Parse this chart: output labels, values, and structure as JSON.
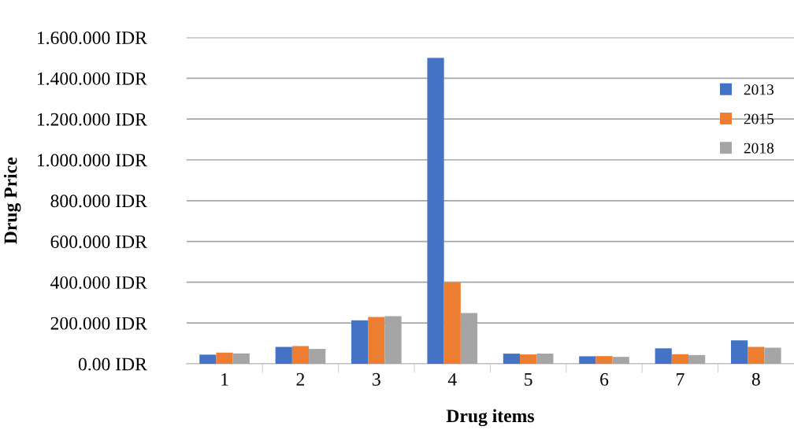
{
  "chart_data": {
    "type": "bar",
    "xlabel": "Drug items",
    "ylabel": "Drug Price",
    "categories": [
      "1",
      "2",
      "3",
      "4",
      "5",
      "6",
      "7",
      "8"
    ],
    "series": [
      {
        "name": "2013",
        "color": "#4472c4",
        "values": [
          45000,
          83000,
          213000,
          1500000,
          50000,
          37000,
          76000,
          115000
        ]
      },
      {
        "name": "2015",
        "color": "#ed7d31",
        "values": [
          55000,
          87000,
          230000,
          400000,
          46000,
          38000,
          47000,
          83000
        ]
      },
      {
        "name": "2018",
        "color": "#a5a5a5",
        "values": [
          51000,
          73000,
          234000,
          249000,
          50000,
          34000,
          43000,
          79000
        ]
      }
    ],
    "ylim": [
      0,
      1600000
    ],
    "yticks": [
      {
        "value": 0,
        "label": "0.00 IDR"
      },
      {
        "value": 200000,
        "label": "200.000 IDR"
      },
      {
        "value": 400000,
        "label": "400.000 IDR"
      },
      {
        "value": 600000,
        "label": "600.000 IDR"
      },
      {
        "value": 800000,
        "label": "800.000 IDR"
      },
      {
        "value": 1000000,
        "label": "1.000.000 IDR"
      },
      {
        "value": 1200000,
        "label": "1.200.000 IDR"
      },
      {
        "value": 1400000,
        "label": "1.400.000 IDR"
      },
      {
        "value": 1600000,
        "label": "1.600.000 IDR"
      }
    ],
    "grid": "y",
    "legend": "top right"
  }
}
